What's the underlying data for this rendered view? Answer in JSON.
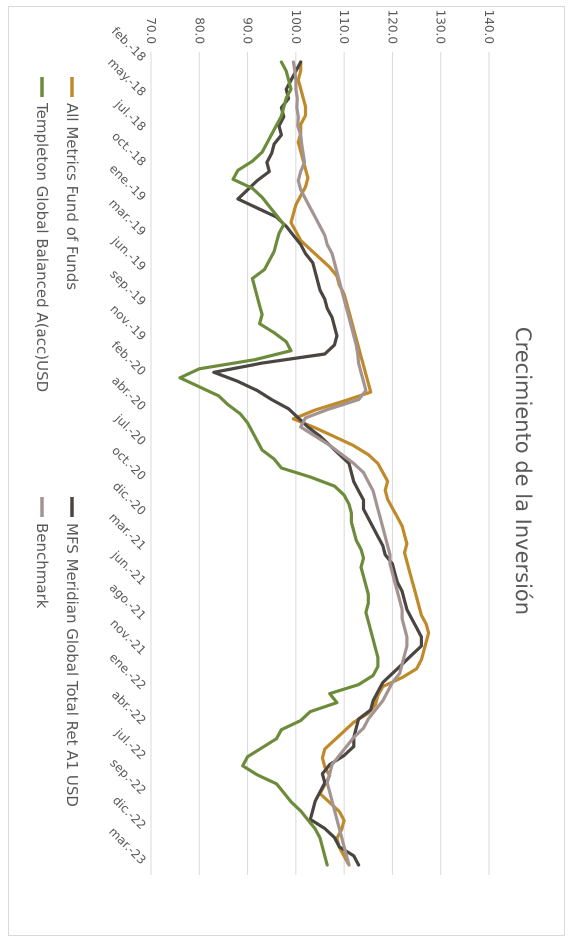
{
  "chart_data": {
    "type": "line",
    "title": "Crecimiento de la Inversión",
    "ylim": [
      70,
      140
    ],
    "y_ticks": [
      "70.0",
      "80.0",
      "90.0",
      "100.0",
      "110.0",
      "120.0",
      "130.0",
      "140.0"
    ],
    "x_ticks": [
      "feb.-18",
      "may.-18",
      "jul.-18",
      "oct.-18",
      "ene.-19",
      "mar.-19",
      "jun.-19",
      "sep.-19",
      "nov.-19",
      "feb.-20",
      "abr.-20",
      "jul.-20",
      "oct.-20",
      "dic.-20",
      "mar.-21",
      "jun.-21",
      "ago.-21",
      "nov.-21",
      "ene.-22",
      "abr.-22",
      "jul.-22",
      "sep.-22",
      "dic.-22",
      "mar.-23"
    ],
    "series": [
      {
        "name": "All Metrics Fund of Funds",
        "color": "#bf8a2a",
        "values": [
          101,
          101,
          100.5,
          101,
          101.5,
          102,
          102,
          101,
          101,
          100.5,
          101,
          101.5,
          102,
          102.5,
          102,
          101,
          100,
          99.5,
          99,
          100,
          101,
          103,
          105,
          107,
          108.5,
          109,
          110,
          110.5,
          111,
          111.5,
          112,
          112.5,
          113,
          113.5,
          114,
          114.5,
          115,
          115.5,
          110,
          104,
          99.5,
          104,
          108,
          112,
          115,
          117,
          118,
          119,
          118.5,
          119,
          120,
          121,
          122,
          122.5,
          123,
          122.5,
          123,
          123.5,
          124,
          124.5,
          125,
          125.5,
          126,
          127,
          127.5,
          127,
          126.5,
          126,
          125,
          122,
          118,
          117,
          116.5,
          115,
          112,
          110,
          108,
          106,
          105.5,
          106,
          107,
          106,
          105,
          107,
          109,
          110,
          109.5,
          108.5,
          109,
          110,
          111
        ]
      },
      {
        "name": "MFS Meridian Global Total Ret A1 USD",
        "color": "#4a4541",
        "values": [
          101,
          100,
          99,
          98,
          98.5,
          97,
          97.5,
          96.5,
          97,
          95.5,
          95,
          94,
          94.5,
          92,
          90,
          88,
          92,
          96,
          98,
          99.5,
          101,
          102,
          103.5,
          104,
          104.5,
          105,
          106,
          106.5,
          107.5,
          108,
          108.5,
          108,
          106,
          93,
          83,
          88,
          92,
          95,
          98.5,
          100.5,
          102.5,
          105,
          107,
          109,
          111,
          111.5,
          112,
          113,
          114,
          114,
          115,
          116,
          117,
          118,
          118.5,
          120,
          120.5,
          121,
          122,
          122.5,
          123,
          124,
          125,
          126,
          126,
          124,
          122,
          120,
          118,
          117,
          116,
          115.5,
          113,
          112.5,
          112,
          112,
          110,
          107,
          105.5,
          106,
          105,
          104,
          103.5,
          103,
          106,
          108,
          109,
          112,
          113
        ]
      },
      {
        "name": "Templeton Global Balanced A(acc)USD",
        "color": "#6c8c3c",
        "values": [
          97,
          98,
          98.5,
          99,
          98,
          97.5,
          97,
          96,
          95,
          94,
          93,
          91,
          88,
          87,
          91,
          93,
          94.5,
          96,
          97.5,
          96.5,
          96,
          95.5,
          94.5,
          93.5,
          91,
          91.5,
          92,
          92.5,
          93,
          92.5,
          95.5,
          98,
          99,
          91.5,
          80,
          76,
          80,
          84,
          86,
          88.5,
          90,
          91,
          92,
          93,
          95.5,
          97,
          103,
          108,
          110,
          111,
          111.5,
          111.5,
          112,
          112.5,
          113.5,
          114,
          113.5,
          114,
          114.5,
          115,
          115,
          114.5,
          115,
          115.5,
          116,
          116.5,
          117,
          117,
          116,
          113,
          107,
          108.5,
          103,
          101,
          97,
          96,
          93,
          90,
          89,
          92,
          96,
          97.5,
          99,
          101,
          102.5,
          104,
          105,
          105.5,
          106,
          106.5
        ]
      },
      {
        "name": "Benchmark",
        "color": "#a39492",
        "values": [
          99.5,
          99.8,
          100,
          100,
          100.3,
          100.2,
          100.5,
          100.4,
          101,
          101.2,
          101.5,
          101.8,
          101,
          100.5,
          101,
          102,
          103,
          104,
          105,
          106,
          106.5,
          107.5,
          108,
          108.5,
          109,
          109.5,
          110,
          110.5,
          111,
          111.5,
          112,
          112.5,
          112.8,
          113,
          113.5,
          114,
          114.5,
          113,
          107,
          102,
          101,
          104,
          107,
          109.5,
          112,
          114,
          115,
          116,
          116.5,
          117,
          117.5,
          118,
          118.5,
          119,
          119.5,
          119.5,
          120,
          120.5,
          121,
          121.5,
          122,
          122,
          122.5,
          123,
          123,
          122.5,
          122,
          121.5,
          120,
          119,
          118,
          116.5,
          115,
          114,
          112,
          110.5,
          109,
          107.5,
          107,
          106.5,
          107,
          107.5,
          108,
          108.5,
          109,
          109.5,
          110,
          110.5,
          111
        ]
      }
    ]
  }
}
